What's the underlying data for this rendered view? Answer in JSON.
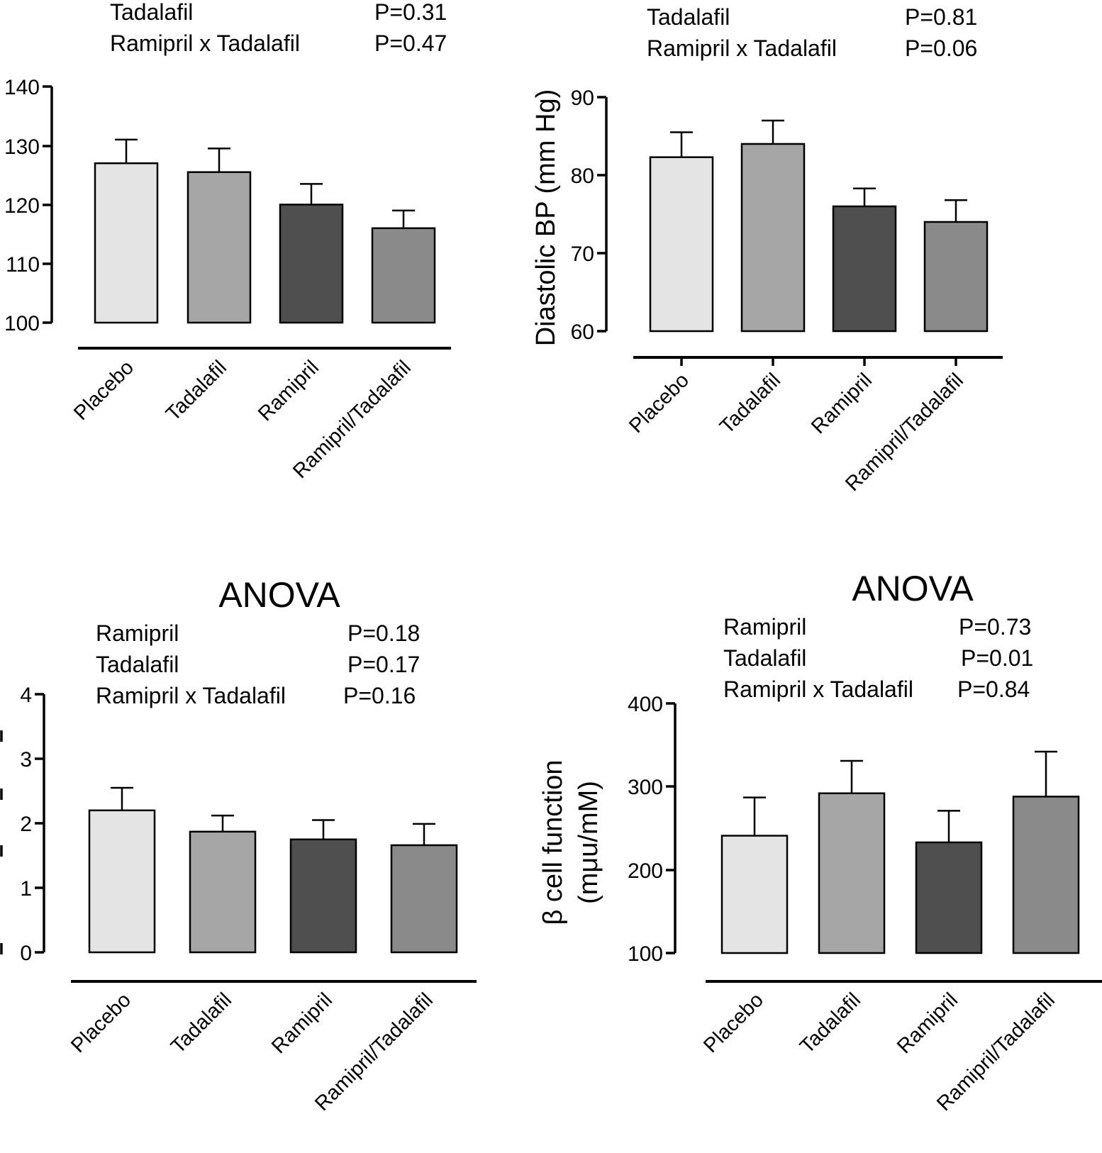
{
  "colors": {
    "placebo": "#e4e4e4",
    "tadalafil": "#a6a6a6",
    "ramipril": "#4f4f4f",
    "combo": "#8a8a8a"
  },
  "chart_data": [
    {
      "type": "bar",
      "title": "",
      "anova": [
        {
          "label": "Tadalafil",
          "p": "P=0.31"
        },
        {
          "label": "Ramipril x Tadalafil",
          "p": "P=0.47"
        }
      ],
      "ylabel": "",
      "ylim": [
        100,
        140
      ],
      "yticks": [
        "100",
        "110",
        "120",
        "130",
        "140"
      ],
      "categories": [
        "Placebo",
        "Tadalafil",
        "Ramipril",
        "Ramipril/Tadalafil"
      ],
      "values": [
        127,
        125.5,
        120,
        116
      ],
      "errors": [
        4,
        4,
        3.5,
        3
      ]
    },
    {
      "type": "bar",
      "title": "",
      "anova": [
        {
          "label": "Tadalafil",
          "p": "P=0.81"
        },
        {
          "label": "Ramipril x Tadalafil",
          "p": "P=0.06"
        }
      ],
      "ylabel": "Diastolic BP (mm Hg)",
      "ylim": [
        60,
        90
      ],
      "yticks": [
        "60",
        "70",
        "80",
        "90"
      ],
      "categories": [
        "Placebo",
        "Tadalafil",
        "Ramipril",
        "Ramipril/Tadalafil"
      ],
      "values": [
        82.3,
        84,
        76,
        74
      ],
      "errors": [
        3.2,
        3,
        2.3,
        2.8
      ]
    },
    {
      "type": "bar",
      "title": "ANOVA",
      "anova": [
        {
          "label": "Ramipril",
          "p": "P=0.18"
        },
        {
          "label": "Tadalafil",
          "p": "P=0.17"
        },
        {
          "label": "Ramipril x Tadalafil",
          "p": "P=0.16"
        }
      ],
      "ylabel": "",
      "ylim": [
        0,
        4
      ],
      "yticks": [
        "0",
        "1",
        "2",
        "3",
        "4"
      ],
      "categories": [
        "Placebo",
        "Tadalafil",
        "Ramipril",
        "Ramipril/Tadalafil"
      ],
      "values": [
        2.2,
        1.87,
        1.75,
        1.66
      ],
      "errors": [
        0.35,
        0.25,
        0.3,
        0.33
      ]
    },
    {
      "type": "bar",
      "title": "ANOVA",
      "anova": [
        {
          "label": "Ramipril",
          "p": "P=0.73"
        },
        {
          "label": "Tadalafil",
          "p": "P=0.01"
        },
        {
          "label": "Ramipril x Tadalafil",
          "p": "P=0.84"
        }
      ],
      "ylabel_line1": "β cell function",
      "ylabel_line2": "(mμu/mM)",
      "ylim": [
        100,
        400
      ],
      "yticks": [
        "100",
        "200",
        "300",
        "400"
      ],
      "categories": [
        "Placebo",
        "Tadalafil",
        "Ramipril",
        "Ramipril/Tadalafil"
      ],
      "values": [
        241,
        292,
        233,
        288
      ],
      "errors": [
        46,
        39,
        38,
        54
      ]
    }
  ]
}
